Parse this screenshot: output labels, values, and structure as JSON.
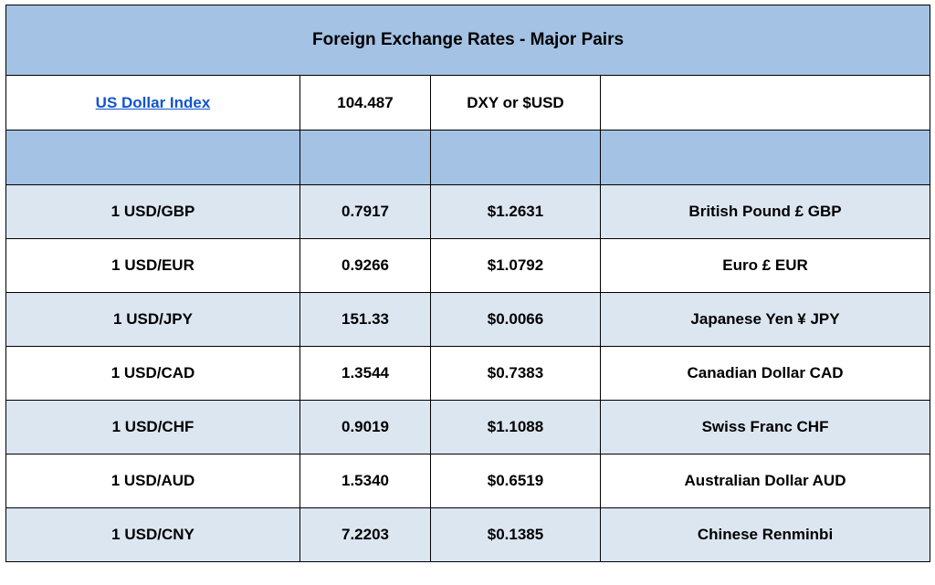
{
  "title": "Foreign Exchange Rates - Major Pairs",
  "index_row": {
    "name": "US Dollar Index",
    "value": "104.487",
    "symbol": "DXY or $USD",
    "note": ""
  },
  "rows": [
    {
      "pair": "1 USD/GBP",
      "rate": "0.7917",
      "usd_value": "$1.2631",
      "currency": "British Pound £ GBP"
    },
    {
      "pair": "1 USD/EUR",
      "rate": "0.9266",
      "usd_value": "$1.0792",
      "currency": "Euro £ EUR"
    },
    {
      "pair": "1 USD/JPY",
      "rate": "151.33",
      "usd_value": "$0.0066",
      "currency": "Japanese Yen ¥ JPY"
    },
    {
      "pair": "1 USD/CAD",
      "rate": "1.3544",
      "usd_value": "$0.7383",
      "currency": "Canadian Dollar CAD"
    },
    {
      "pair": "1 USD/CHF",
      "rate": "0.9019",
      "usd_value": "$1.1088",
      "currency": "Swiss Franc CHF"
    },
    {
      "pair": "1 USD/AUD",
      "rate": "1.5340",
      "usd_value": "$0.6519",
      "currency": "Australian Dollar AUD"
    },
    {
      "pair": "1 USD/CNY",
      "rate": "7.2203",
      "usd_value": "$0.1385",
      "currency": "Chinese Renminbi"
    }
  ],
  "colors": {
    "header_blue": "#a4c2e4",
    "row_light_blue": "#dce6f1",
    "link_blue": "#1155cc",
    "border": "#000000"
  }
}
